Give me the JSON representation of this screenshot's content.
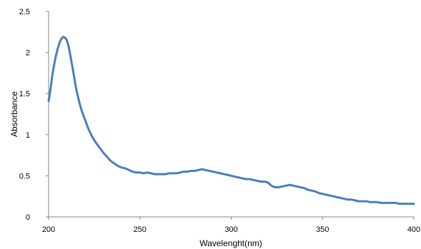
{
  "chart_data": {
    "type": "line",
    "title": "",
    "xlabel": "Wavelenght(nm)",
    "ylabel": "Absorbance",
    "xlim": [
      200,
      400
    ],
    "ylim": [
      0,
      2.5
    ],
    "xticks": [
      200,
      250,
      300,
      350,
      400
    ],
    "xtick_labels": [
      "200",
      "250",
      "300",
      "350",
      "400"
    ],
    "yticks": [
      0,
      0.5,
      1,
      1.5,
      2,
      2.5
    ],
    "ytick_labels": [
      "0",
      "0.5",
      "1",
      "1.5",
      "2",
      "2.5"
    ],
    "grid": false,
    "legend": "none",
    "series": [
      {
        "color": "#4a7ebb",
        "x": [
          200,
          201,
          202,
          203,
          204,
          205,
          206,
          207,
          208,
          209,
          210,
          211,
          212,
          213,
          214,
          215,
          216,
          217,
          218,
          219,
          220,
          222,
          224,
          226,
          228,
          230,
          232,
          234,
          236,
          238,
          240,
          242,
          244,
          246,
          248,
          250,
          252,
          254,
          256,
          258,
          260,
          262,
          264,
          266,
          268,
          270,
          272,
          274,
          276,
          278,
          280,
          282,
          284,
          286,
          288,
          290,
          292,
          294,
          296,
          298,
          300,
          302,
          304,
          306,
          308,
          310,
          312,
          314,
          316,
          318,
          320,
          322,
          324,
          326,
          328,
          330,
          332,
          334,
          336,
          338,
          340,
          342,
          344,
          346,
          348,
          350,
          352,
          354,
          356,
          358,
          360,
          362,
          364,
          366,
          368,
          370,
          372,
          374,
          376,
          378,
          380,
          382,
          384,
          386,
          388,
          390,
          392,
          394,
          396,
          398,
          400
        ],
        "y": [
          1.41,
          1.55,
          1.72,
          1.85,
          1.96,
          2.05,
          2.12,
          2.17,
          2.19,
          2.18,
          2.15,
          2.07,
          1.95,
          1.83,
          1.7,
          1.57,
          1.47,
          1.38,
          1.3,
          1.24,
          1.18,
          1.06,
          0.97,
          0.9,
          0.84,
          0.78,
          0.73,
          0.68,
          0.65,
          0.62,
          0.6,
          0.59,
          0.57,
          0.55,
          0.54,
          0.54,
          0.53,
          0.54,
          0.53,
          0.52,
          0.52,
          0.52,
          0.52,
          0.53,
          0.53,
          0.53,
          0.54,
          0.55,
          0.55,
          0.56,
          0.56,
          0.57,
          0.58,
          0.57,
          0.56,
          0.55,
          0.54,
          0.53,
          0.52,
          0.51,
          0.5,
          0.49,
          0.48,
          0.47,
          0.46,
          0.46,
          0.45,
          0.44,
          0.43,
          0.43,
          0.42,
          0.38,
          0.36,
          0.36,
          0.37,
          0.38,
          0.39,
          0.38,
          0.37,
          0.36,
          0.35,
          0.33,
          0.32,
          0.31,
          0.29,
          0.28,
          0.27,
          0.26,
          0.25,
          0.24,
          0.23,
          0.22,
          0.21,
          0.21,
          0.2,
          0.19,
          0.19,
          0.19,
          0.18,
          0.18,
          0.18,
          0.17,
          0.17,
          0.17,
          0.17,
          0.17,
          0.16,
          0.16,
          0.16,
          0.16,
          0.16
        ]
      }
    ]
  }
}
